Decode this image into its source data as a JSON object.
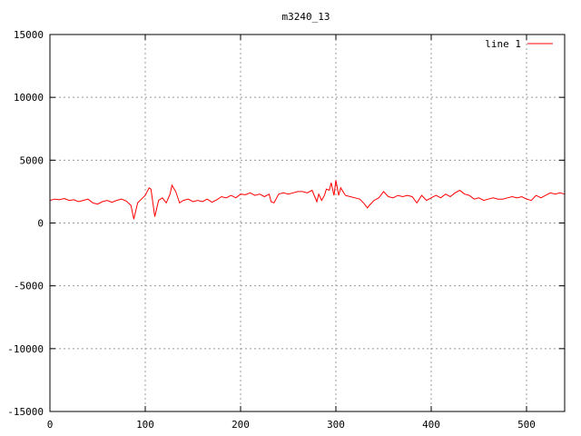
{
  "chart_data": {
    "type": "line",
    "title": "m3240_13",
    "xlabel": "",
    "ylabel": "",
    "xlim": [
      0,
      540
    ],
    "ylim": [
      -15000,
      15000
    ],
    "grid": true,
    "legend_position": "top-right",
    "x_ticks": [
      "0",
      "100",
      "200",
      "300",
      "400",
      "500"
    ],
    "y_ticks": [
      "15000",
      "10000",
      "5000",
      "0",
      "-5000",
      "-10000",
      "-15000"
    ],
    "series": [
      {
        "name": "line 1",
        "color": "#ff0000",
        "x": [
          0,
          5,
          10,
          15,
          20,
          25,
          30,
          35,
          40,
          45,
          50,
          55,
          60,
          65,
          70,
          75,
          80,
          85,
          88,
          92,
          96,
          100,
          104,
          106,
          110,
          114,
          118,
          122,
          126,
          128,
          132,
          136,
          140,
          145,
          150,
          155,
          160,
          165,
          170,
          175,
          180,
          185,
          190,
          195,
          200,
          205,
          210,
          215,
          220,
          225,
          230,
          232,
          235,
          240,
          245,
          250,
          255,
          260,
          265,
          270,
          275,
          280,
          282,
          285,
          288,
          290,
          293,
          295,
          298,
          300,
          303,
          305,
          310,
          315,
          320,
          325,
          330,
          333,
          335,
          340,
          345,
          350,
          355,
          360,
          365,
          370,
          375,
          380,
          385,
          390,
          395,
          400,
          405,
          410,
          415,
          420,
          425,
          430,
          435,
          440,
          445,
          450,
          455,
          460,
          465,
          470,
          475,
          480,
          485,
          490,
          495,
          500,
          505,
          510,
          515,
          520,
          525,
          530,
          535,
          540
        ],
        "y": [
          1800,
          1900,
          1850,
          1950,
          1800,
          1850,
          1700,
          1800,
          1900,
          1600,
          1500,
          1700,
          1800,
          1650,
          1800,
          1900,
          1750,
          1400,
          300,
          1600,
          1900,
          2200,
          2800,
          2700,
          500,
          1800,
          2000,
          1600,
          2300,
          3000,
          2500,
          1600,
          1800,
          1900,
          1700,
          1800,
          1700,
          1900,
          1650,
          1850,
          2100,
          2000,
          2200,
          2000,
          2300,
          2250,
          2400,
          2200,
          2300,
          2100,
          2300,
          1700,
          1600,
          2300,
          2400,
          2300,
          2400,
          2500,
          2500,
          2400,
          2600,
          1700,
          2300,
          1800,
          2200,
          2700,
          2600,
          3200,
          2200,
          3400,
          2200,
          2800,
          2200,
          2100,
          2000,
          1900,
          1500,
          1200,
          1400,
          1800,
          2000,
          2500,
          2100,
          2000,
          2200,
          2100,
          2200,
          2100,
          1600,
          2200,
          1800,
          2000,
          2200,
          2000,
          2300,
          2100,
          2400,
          2600,
          2300,
          2200,
          1900,
          2000,
          1800,
          1900,
          2000,
          1900,
          1900,
          2000,
          2100,
          2000,
          2100,
          1900,
          1800,
          2200,
          2000,
          2200,
          2400,
          2300,
          2400,
          2300
        ]
      }
    ]
  }
}
